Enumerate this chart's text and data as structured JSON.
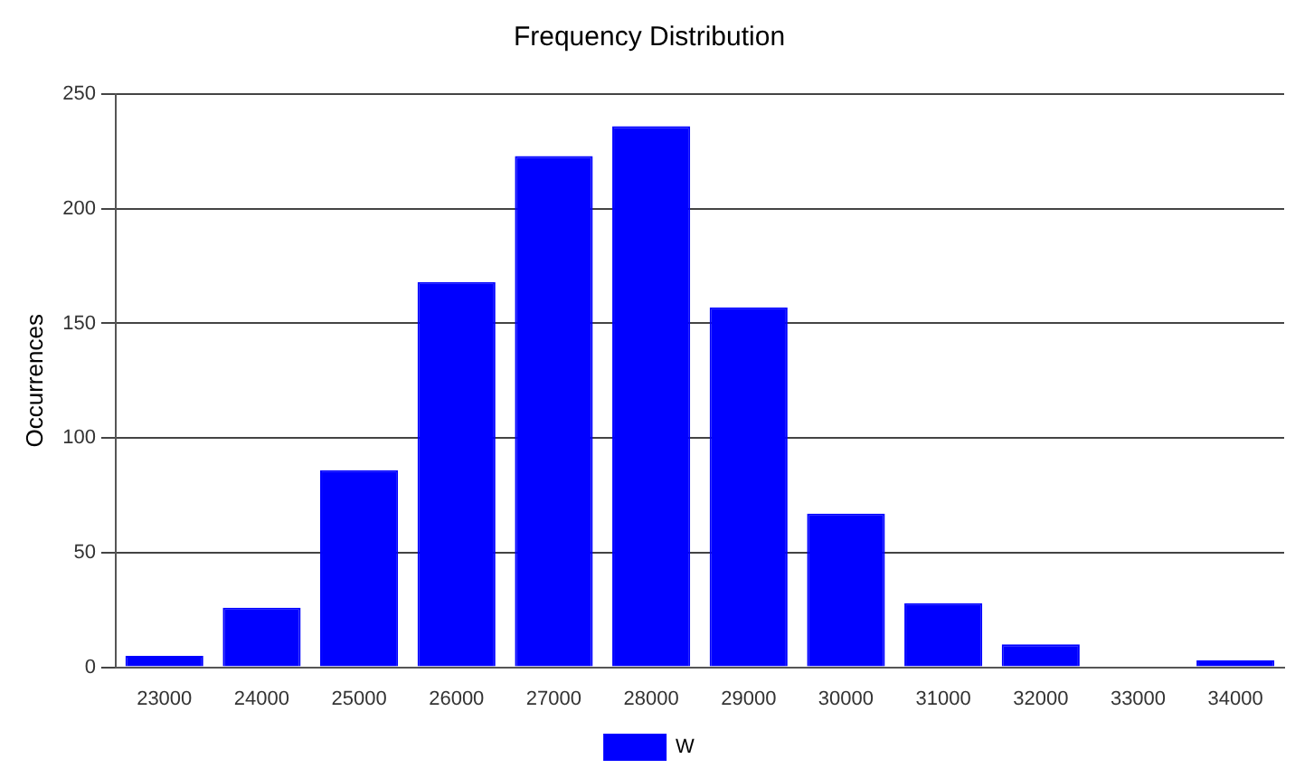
{
  "chart_data": {
    "type": "bar",
    "title": "Frequency Distribution",
    "ylabel": "Occurrences",
    "categories": [
      "23000",
      "24000",
      "25000",
      "26000",
      "27000",
      "28000",
      "29000",
      "30000",
      "31000",
      "32000",
      "33000",
      "34000"
    ],
    "series": [
      {
        "name": "W",
        "color": "#0000ff",
        "values": [
          5,
          26,
          86,
          168,
          223,
          236,
          157,
          67,
          28,
          10,
          0,
          3
        ]
      }
    ],
    "ylim": [
      0,
      250
    ],
    "yticks": [
      0,
      50,
      100,
      150,
      200,
      250
    ],
    "grid": "y",
    "legend": "bottom"
  }
}
